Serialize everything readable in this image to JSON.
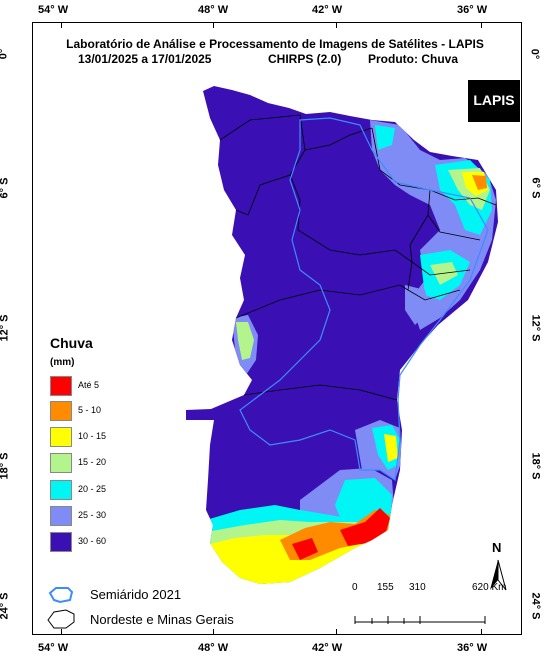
{
  "header": {
    "title": "Laboratório de Análise e Processamento de Imagens de Satélites - LAPIS",
    "dates": "13/01/2025  a 17/01/2025",
    "dataset": "CHIRPS (2.0)",
    "product": "Produto: Chuva"
  },
  "logo": {
    "text": "LAPIS"
  },
  "axes": {
    "top_labels": [
      "54° W",
      "48° W",
      "42° W",
      "36° W"
    ],
    "bottom_labels": [
      "54° W",
      "48° W",
      "42° W",
      "36° W"
    ],
    "left_labels": [
      "0°",
      "6° S",
      "12° S",
      "18° S",
      "24° S"
    ],
    "right_labels": [
      "0°",
      "6° S",
      "12° S",
      "18° S",
      "24° S"
    ]
  },
  "legend": {
    "title": "Chuva",
    "unit": "(mm)",
    "items": [
      {
        "label": "Até 5",
        "color": "#ff0000"
      },
      {
        "label": "5 - 10",
        "color": "#ff8c00"
      },
      {
        "label": "10 - 15",
        "color": "#ffff00"
      },
      {
        "label": "15 - 20",
        "color": "#b3f58c"
      },
      {
        "label": "20 - 25",
        "color": "#00f5f5"
      },
      {
        "label": "25 - 30",
        "color": "#7f8cf5"
      },
      {
        "label": "30 - 60",
        "color": "#3a0fb3"
      }
    ],
    "semiarido": "Semiárido 2021",
    "nordeste": "Nordeste e Minas Gerais"
  },
  "scale_bar": {
    "labels": [
      "0",
      "155",
      "310",
      "620 Km"
    ]
  },
  "north_arrow": {
    "label": "N"
  },
  "colors": {
    "base": "#3a0fb3",
    "semiarido_outline": "#3c8cff",
    "state_borders": "#000000"
  }
}
